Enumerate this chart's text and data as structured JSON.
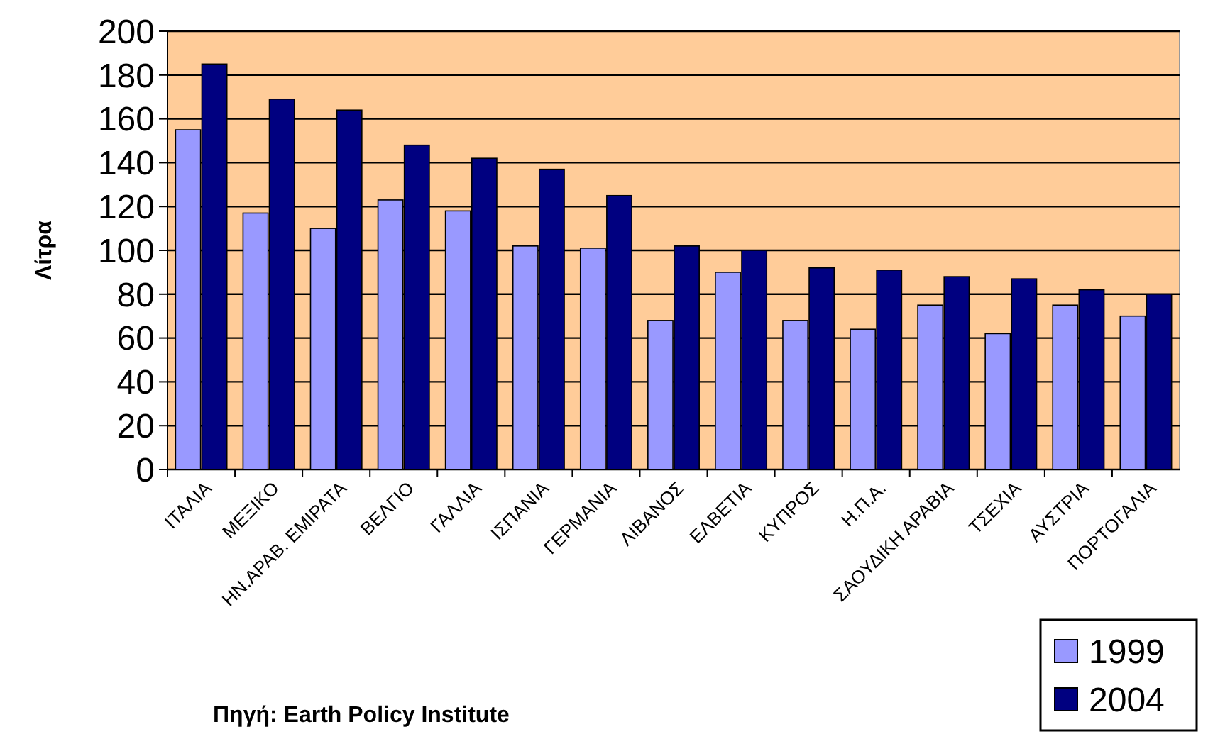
{
  "chart_data": {
    "type": "bar",
    "ylabel": "Λίτρα",
    "categories": [
      "ΙΤΑΛΙΑ",
      "ΜΕΞΙΚΟ",
      "ΗΝ.ΑΡΑΒ. ΕΜΙΡΑΤΑ",
      "ΒΕΛΓΙΟ",
      "ΓΑΛΛΙΑ",
      "ΙΣΠΑΝΙΑ",
      "ΓΕΡΜΑΝΙΑ",
      "ΛΙΒΑΝΟΣ",
      "ΕΛΒΕΤΙΑ",
      "ΚΥΠΡΟΣ",
      "Η.Π.Α.",
      "ΣΑΟΥΔΙΚΗ ΑΡΑΒΙΑ",
      "ΤΣΕΧΙΑ",
      "ΑΥΣΤΡΙΑ",
      "ΠΟΡΤΟΓΑΛΙΑ"
    ],
    "series": [
      {
        "name": "1999",
        "color": "#9999ff",
        "values": [
          155,
          117,
          110,
          123,
          118,
          102,
          101,
          68,
          90,
          68,
          64,
          75,
          62,
          75,
          70
        ]
      },
      {
        "name": "2004",
        "color": "#000080",
        "values": [
          185,
          169,
          164,
          148,
          142,
          137,
          125,
          102,
          100,
          92,
          91,
          88,
          87,
          82,
          80
        ]
      }
    ],
    "ylim": [
      0,
      200
    ],
    "yticks": [
      0,
      20,
      40,
      60,
      80,
      100,
      120,
      140,
      160,
      180,
      200
    ],
    "grid": "y",
    "legend": "bottom right",
    "annotations": [
      "Πηγή: Earth Policy Institute"
    ]
  }
}
